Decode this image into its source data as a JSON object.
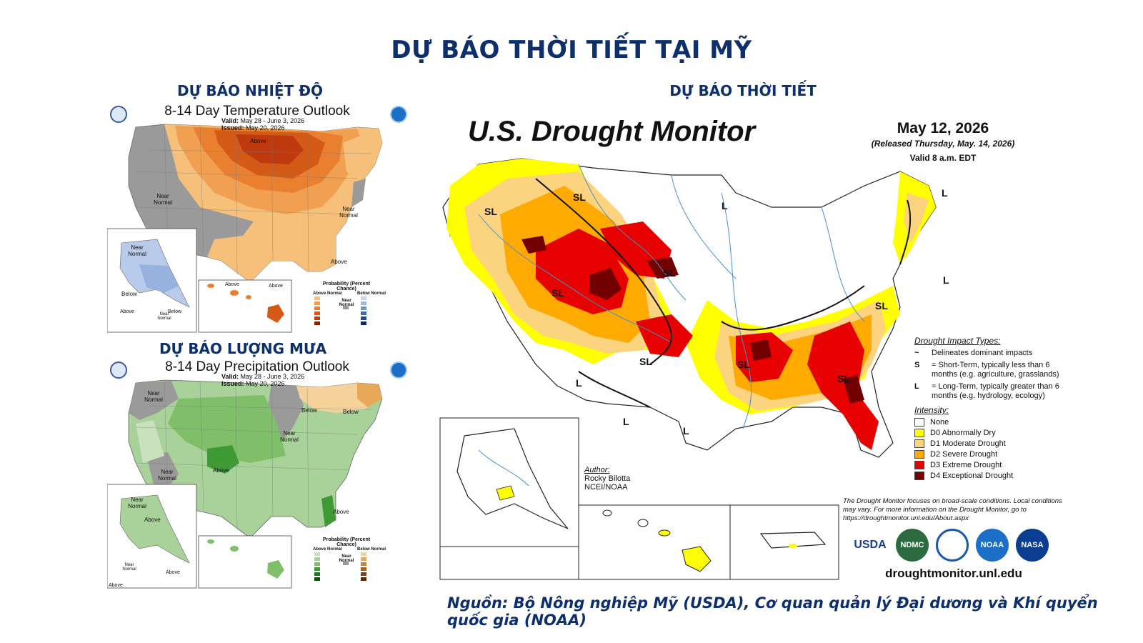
{
  "page": {
    "title": "DỰ BÁO THỜI TIẾT TẠI MỸ",
    "source": "Nguồn: Bộ Nông nghiệp Mỹ (USDA), Cơ quan quản lý Đại dương và Khí quyển quốc gia (NOAA)"
  },
  "temperature": {
    "heading": "DỰ BÁO NHIỆT ĐỘ",
    "map_title": "8-14 Day Temperature Outlook",
    "valid_label": "Valid:",
    "valid": "May 28 - June 3, 2026",
    "issued_label": "Issued:",
    "issued": "May 20, 2026",
    "labels": {
      "above_1": "Above",
      "near_west": "Near Normal",
      "near_east": "Near Normal",
      "above_se": "Above",
      "ak_near": "Near Normal",
      "ak_below": "Below",
      "hi_above_1": "Above",
      "hi_above_2": "Above",
      "ai_above": "Above",
      "ai_near": "Near Normal",
      "ai_below": "Below"
    },
    "legend": {
      "title": "Probability (Percent Chance)",
      "above": "Above Normal",
      "near": "Near Normal",
      "below": "Below Normal"
    }
  },
  "precipitation": {
    "heading": "DỰ BÁO LƯỢNG MƯA",
    "map_title": "8-14 Day Precipitation Outlook",
    "valid_label": "Valid:",
    "valid": "May 28 - June 3, 2026",
    "issued_label": "Issued:",
    "issued": "May 20, 2026",
    "labels": {
      "near_nw": "Near Normal",
      "below_1": "Below",
      "below_2": "Below",
      "near_ne": "Near Normal",
      "above_c": "Above",
      "near_sw": "Near Normal",
      "above_fl": "Above",
      "ak_near": "Near Normal",
      "ak_above": "Above",
      "ai_near": "Near Normal",
      "ai_above": "Above",
      "ai_above2": "Above"
    },
    "legend": {
      "title": "Probability (Percent Chance)",
      "above": "Above Normal",
      "near": "Near Normal",
      "below": "Below Normal"
    }
  },
  "drought": {
    "heading": "DỰ BÁO THỜI TIẾT",
    "title": "U.S. Drought Monitor",
    "date": "May 12, 2026",
    "released": "(Released Thursday, May. 14, 2026)",
    "valid": "Valid 8 a.m. EDT",
    "impact_heading": "Drought Impact Types:",
    "impact_delineates": "Delineates dominant impacts",
    "impact_s_key": "S",
    "impact_s": "= Short-Term, typically less than 6 months (e.g. agriculture, grasslands)",
    "impact_l_key": "L",
    "impact_l": "= Long-Term, typically greater than 6 months (e.g. hydrology, ecology)",
    "intensity_heading": "Intensity:",
    "intensity": [
      {
        "label": "None",
        "color": "#ffffff"
      },
      {
        "label": "D0 Abnormally Dry",
        "color": "#ffff00"
      },
      {
        "label": "D1 Moderate Drought",
        "color": "#fcd37f"
      },
      {
        "label": "D2 Severe Drought",
        "color": "#ffaa00"
      },
      {
        "label": "D3 Extreme Drought",
        "color": "#e60000"
      },
      {
        "label": "D4 Exceptional Drought",
        "color": "#730000"
      }
    ],
    "author_label": "Author:",
    "author_name": "Rocky Bilotta",
    "author_org": "NCEI/NOAA",
    "note": "The Drought Monitor focuses on broad-scale conditions. Local conditions may vary. For more information on the Drought Monitor, go to https://droughtmonitor.unl.edu/About.aspx",
    "logos": [
      "USDA",
      "NDMC",
      "NOAA",
      "NASA"
    ],
    "url": "droughtmonitor.unl.edu",
    "map_labels": {
      "sl_1": "SL",
      "sl_2": "SL",
      "sl_3": "SL",
      "sl_4": "SL",
      "sl_5": "SL",
      "sl_6": "SL",
      "sl_7": "SL",
      "sl_8": "SL",
      "l_1": "L",
      "l_2": "L",
      "l_3": "L",
      "l_4": "L",
      "l_5": "L",
      "l_6": "L"
    }
  }
}
